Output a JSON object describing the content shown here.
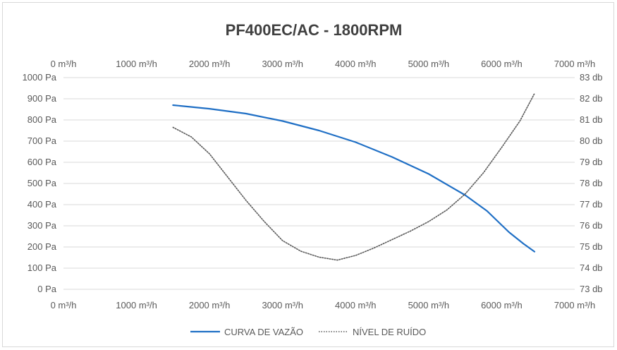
{
  "chart_data": {
    "type": "line",
    "title": "PF400EC/AC - 1800RPM",
    "x_axis": {
      "ticks": [
        "0 m³/h",
        "1000 m³/h",
        "2000 m³/h",
        "3000 m³/h",
        "4000 m³/h",
        "5000 m³/h",
        "6000 m³/h",
        "7000 m³/h"
      ],
      "range": [
        0,
        7000
      ],
      "unit": "m³/h",
      "shown": [
        "top",
        "bottom"
      ]
    },
    "y_left": {
      "ticks": [
        "0 Pa",
        "100 Pa",
        "200 Pa",
        "300 Pa",
        "400 Pa",
        "500 Pa",
        "600 Pa",
        "700 Pa",
        "800 Pa",
        "900 Pa",
        "1000 Pa"
      ],
      "range": [
        0,
        1000
      ],
      "unit": "Pa"
    },
    "y_right": {
      "ticks": [
        "73 db",
        "74 db",
        "75 db",
        "76 db",
        "77 db",
        "78 db",
        "79 db",
        "80 db",
        "81 db",
        "82 db",
        "83 db"
      ],
      "range": [
        73,
        83
      ],
      "unit": "db"
    },
    "grid": true,
    "legend_position": "bottom",
    "series": [
      {
        "name": "CURVA DE VAZÃO",
        "axis": "left",
        "color": "#1f6fc5",
        "style": "solid",
        "x": [
          1500,
          2000,
          2500,
          3000,
          3500,
          4000,
          4500,
          5000,
          5500,
          5800,
          6100,
          6300,
          6450
        ],
        "y": [
          870,
          853,
          830,
          795,
          750,
          695,
          625,
          545,
          445,
          370,
          270,
          215,
          178
        ]
      },
      {
        "name": "NÍVEL DE RUÍDO",
        "axis": "right",
        "color": "#595959",
        "style": "dotted",
        "x": [
          1500,
          1750,
          2000,
          2250,
          2500,
          2750,
          3000,
          3250,
          3500,
          3750,
          4000,
          4250,
          4500,
          4750,
          5000,
          5250,
          5500,
          5750,
          6000,
          6250,
          6450
        ],
        "y": [
          80.65,
          80.2,
          79.4,
          78.3,
          77.2,
          76.2,
          75.3,
          74.8,
          74.52,
          74.38,
          74.6,
          74.95,
          75.35,
          75.75,
          76.2,
          76.75,
          77.5,
          78.5,
          79.7,
          80.95,
          82.25
        ]
      }
    ]
  }
}
